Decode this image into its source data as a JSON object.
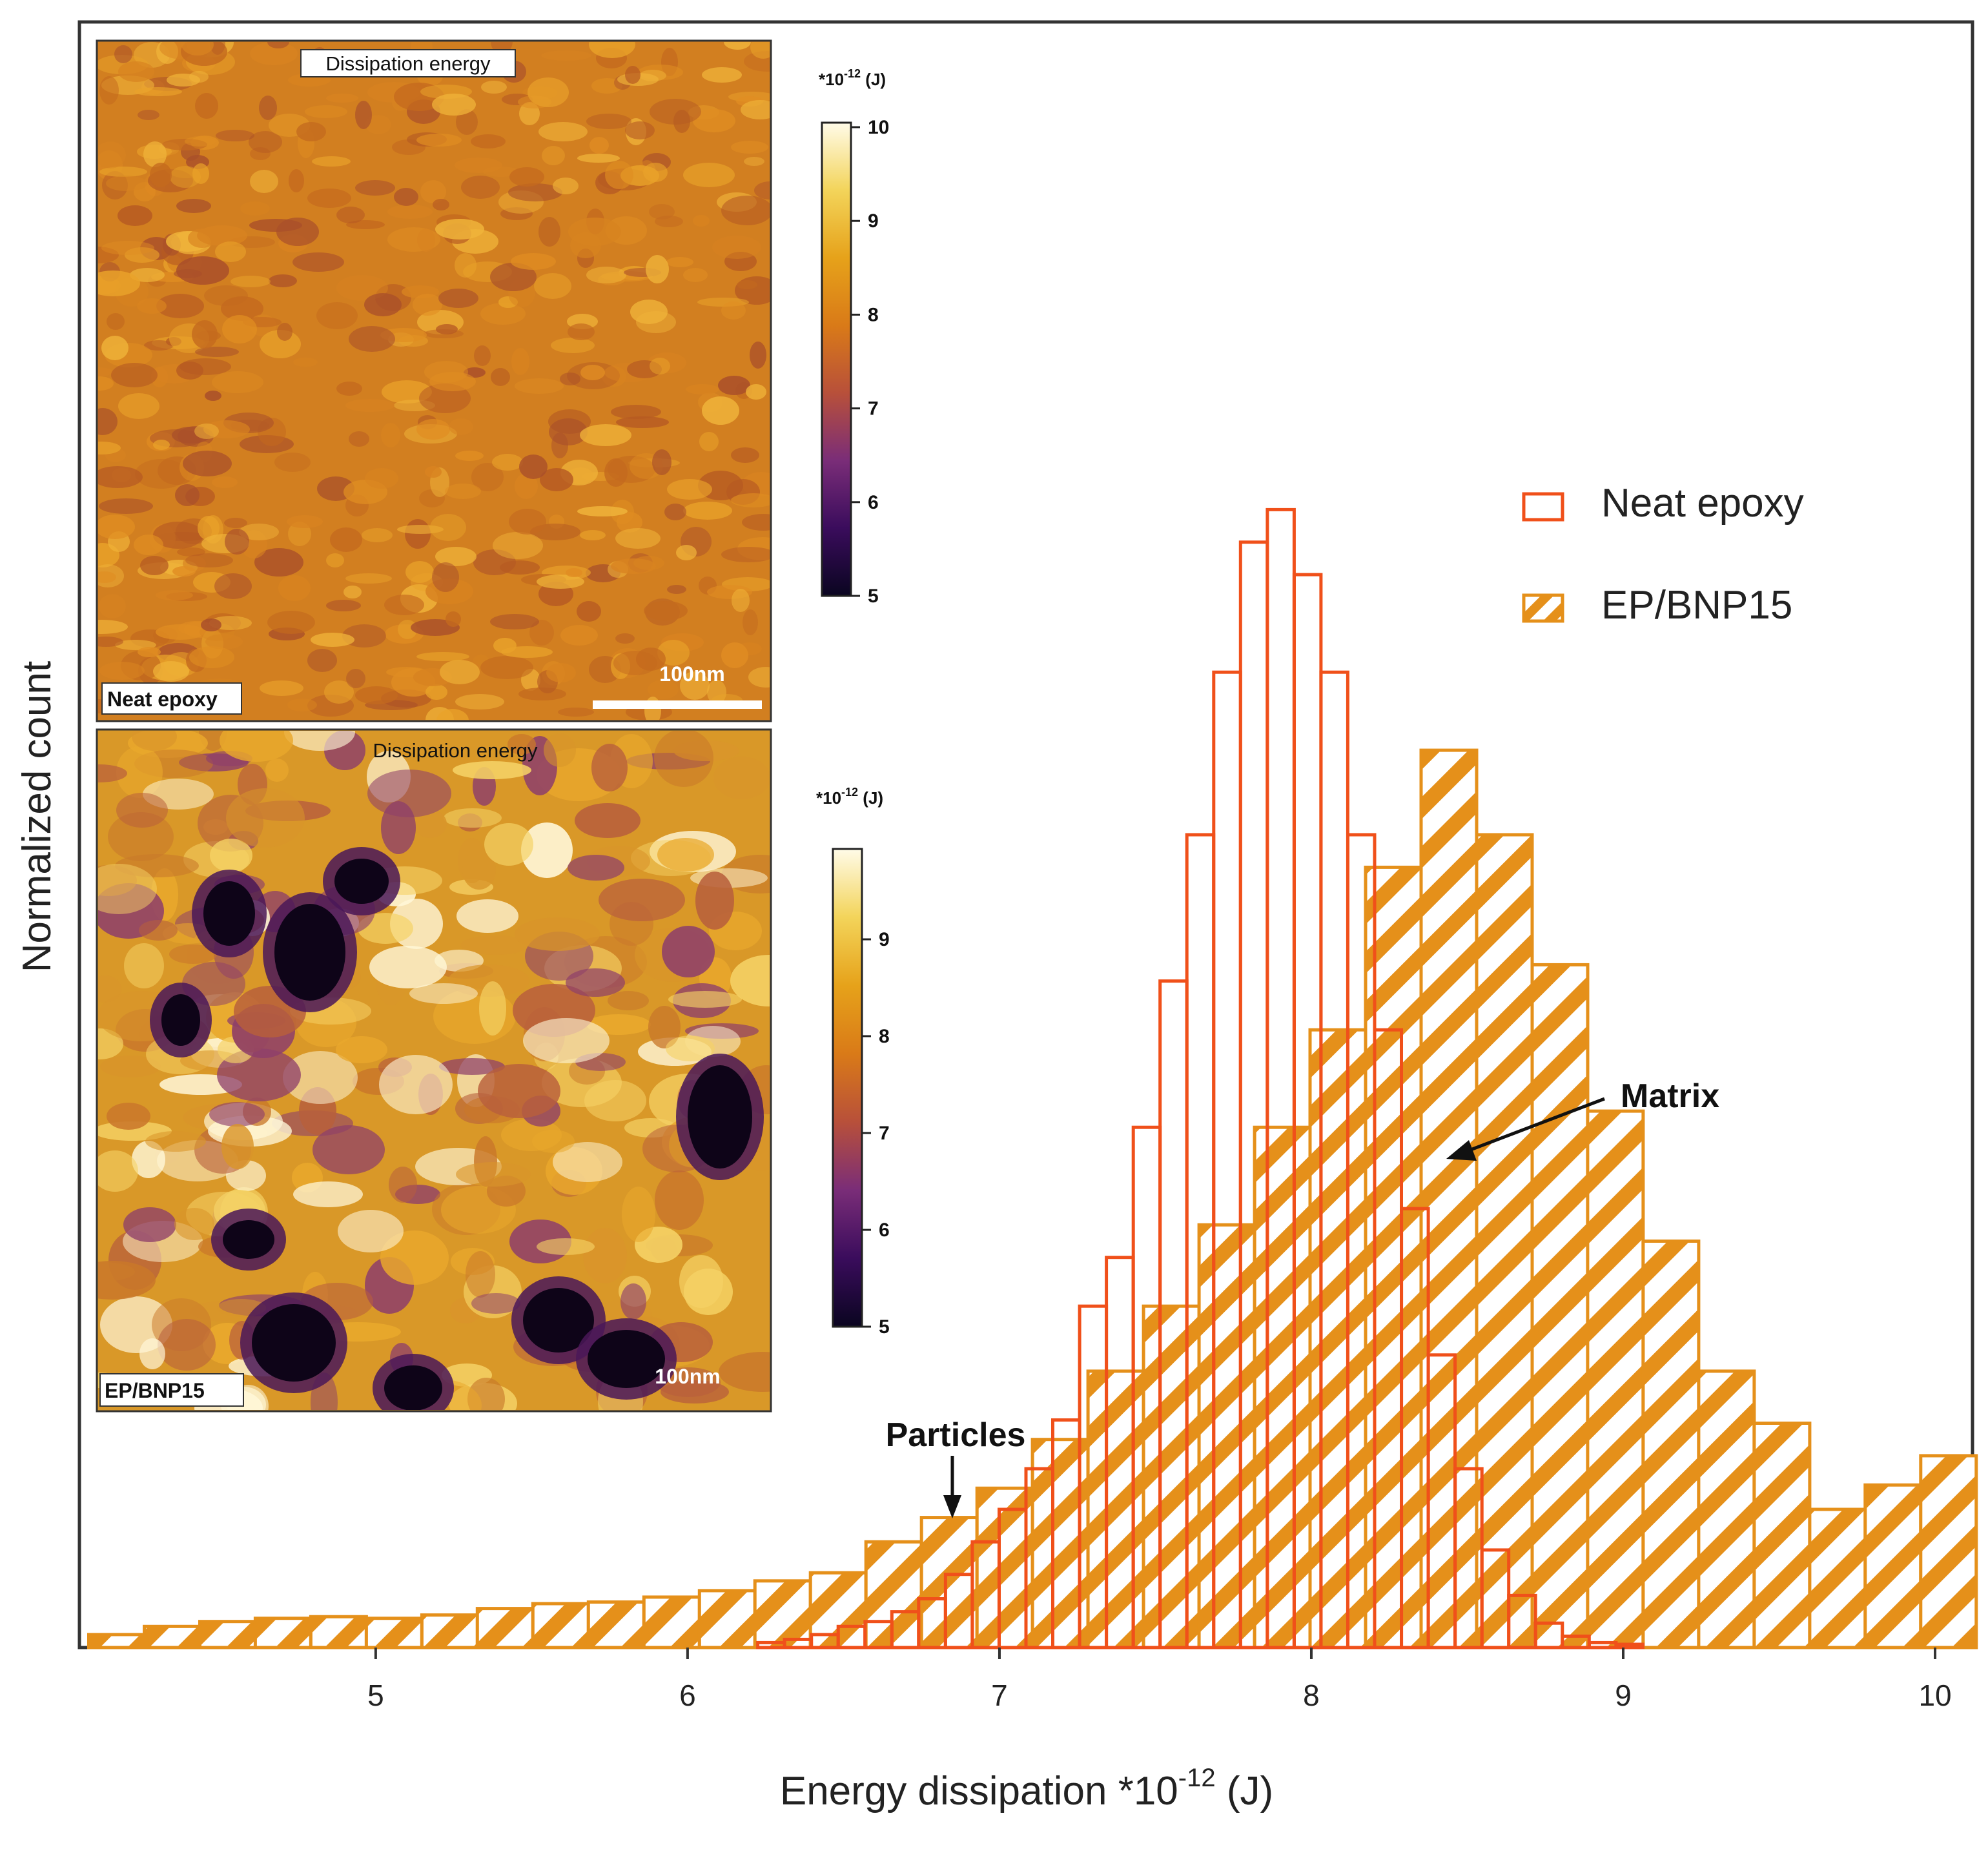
{
  "chart_data": {
    "type": "bar",
    "subtype": "histogram",
    "xlabel": "Energy dissipation *10",
    "xlabel_exponent": "-12",
    "xlabel_unit": " (J)",
    "ylabel": "Normalized count",
    "xlim": [
      4.05,
      10.12
    ],
    "ylim": [
      0,
      1
    ],
    "x_ticks": [
      5,
      6,
      7,
      8,
      9,
      10
    ],
    "y_ticks_shown": false,
    "grid": false,
    "legend_position": "right",
    "series": [
      {
        "name": "Neat epoxy",
        "style": "open",
        "color": "#F0501A",
        "bin_edges": [
          6.225,
          6.311,
          6.397,
          6.483,
          6.569,
          6.655,
          6.741,
          6.827,
          6.913,
          6.999,
          7.085,
          7.171,
          7.257,
          7.343,
          7.429,
          7.515,
          7.601,
          7.687,
          7.773,
          7.859,
          7.945,
          8.031,
          8.117,
          8.203,
          8.289,
          8.375,
          8.461,
          8.547,
          8.633,
          8.719,
          8.805,
          8.891,
          8.977,
          9.063
        ],
        "values": [
          0.003,
          0.005,
          0.008,
          0.013,
          0.016,
          0.022,
          0.03,
          0.045,
          0.065,
          0.085,
          0.11,
          0.14,
          0.21,
          0.24,
          0.32,
          0.41,
          0.5,
          0.6,
          0.68,
          0.7,
          0.66,
          0.6,
          0.5,
          0.38,
          0.27,
          0.18,
          0.11,
          0.06,
          0.032,
          0.015,
          0.007,
          0.003,
          0.002
        ]
      },
      {
        "name": "EP/BNP15",
        "style": "hatched",
        "color": "#E5901A",
        "bin_edges": [
          4.08,
          4.258,
          4.436,
          4.614,
          4.792,
          4.97,
          5.148,
          5.326,
          5.504,
          5.682,
          5.86,
          6.038,
          6.216,
          6.394,
          6.572,
          6.75,
          6.928,
          7.106,
          7.284,
          7.462,
          7.64,
          7.818,
          7.996,
          8.174,
          8.352,
          8.53,
          8.708,
          8.886,
          9.064,
          9.242,
          9.42,
          9.598,
          9.776,
          9.954,
          10.132
        ],
        "values": [
          0.008,
          0.013,
          0.016,
          0.018,
          0.019,
          0.018,
          0.02,
          0.024,
          0.027,
          0.028,
          0.031,
          0.035,
          0.041,
          0.046,
          0.065,
          0.08,
          0.098,
          0.128,
          0.17,
          0.21,
          0.26,
          0.32,
          0.38,
          0.48,
          0.552,
          0.5,
          0.42,
          0.33,
          0.25,
          0.17,
          0.138,
          0.085,
          0.1,
          0.118
        ]
      }
    ],
    "annotations": [
      {
        "text": "Matrix",
        "points_to_x": 8.4
      },
      {
        "text": "Particles",
        "points_to_x": 6.85
      }
    ]
  },
  "insets": [
    {
      "title": "Dissipation energy",
      "corner_label": "Neat epoxy",
      "scale_bar": "100nm",
      "colorbar_unit_prefix": "*10",
      "colorbar_unit_exponent": "-12",
      "colorbar_unit_suffix": " (J)",
      "colorbar_ticks": [
        "10",
        "9",
        "8",
        "7",
        "6",
        "5"
      ],
      "colormap": [
        "#0A0520",
        "#3A0C5C",
        "#7A2D78",
        "#B8503A",
        "#D97A18",
        "#E6A21A",
        "#F3D45A",
        "#FFFBE8"
      ]
    },
    {
      "title": "Dissipation energy",
      "corner_label": "EP/BNP15",
      "scale_bar": "100nm",
      "colorbar_unit_prefix": "*10",
      "colorbar_unit_exponent": "-12",
      "colorbar_unit_suffix": " (J)",
      "colorbar_ticks": [
        "9",
        "8",
        "7",
        "6",
        "5"
      ],
      "colormap": [
        "#0A0520",
        "#3A0C5C",
        "#7A2D78",
        "#B8503A",
        "#D97A18",
        "#E6A21A",
        "#F3D45A",
        "#FFFBE8"
      ]
    }
  ]
}
